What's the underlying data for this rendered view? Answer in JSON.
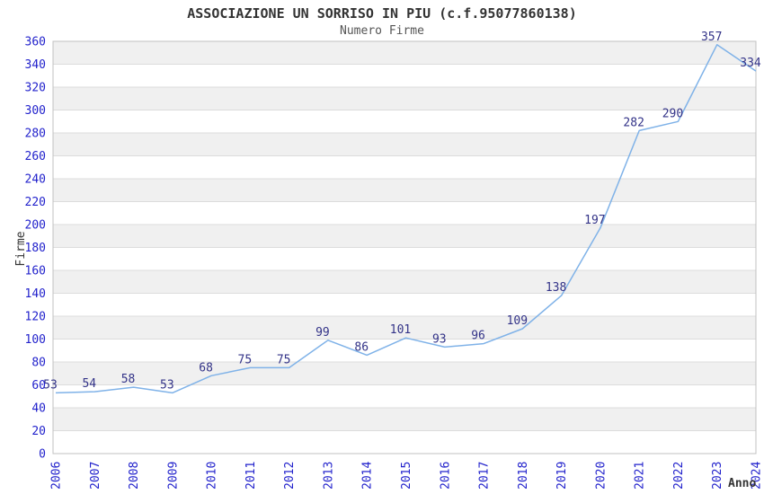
{
  "chart_data": {
    "type": "line",
    "title": "ASSOCIAZIONE UN SORRISO IN PIU (c.f.95077860138)",
    "subtitle": "Numero Firme",
    "x": [
      "2006",
      "2007",
      "2008",
      "2009",
      "2010",
      "2011",
      "2012",
      "2013",
      "2014",
      "2015",
      "2016",
      "2017",
      "2018",
      "2019",
      "2020",
      "2021",
      "2022",
      "2023",
      "2024"
    ],
    "values": [
      53,
      54,
      58,
      53,
      68,
      75,
      75,
      99,
      86,
      101,
      93,
      96,
      109,
      138,
      197,
      282,
      290,
      357,
      334
    ],
    "xlabel": "Anno",
    "ylabel": "Firme",
    "ylim": [
      0,
      360
    ],
    "ytick_step": 20,
    "yticks": [
      0,
      20,
      40,
      60,
      80,
      100,
      120,
      140,
      160,
      180,
      200,
      220,
      240,
      260,
      280,
      300,
      320,
      340,
      360
    ],
    "grid": true,
    "legend_position": "none",
    "band_alternation": "gray band from 340-360 alternating downward",
    "colors": {
      "line": "#7fb2e8",
      "tick_label": "#2222cc",
      "value_label": "#333388",
      "band": "#f0f0f0",
      "gridline": "#dcdcdc",
      "border": "#c0c0c0",
      "title": "#333333",
      "subtitle": "#555555",
      "axis_title": "#333333",
      "background": "#ffffff"
    }
  }
}
